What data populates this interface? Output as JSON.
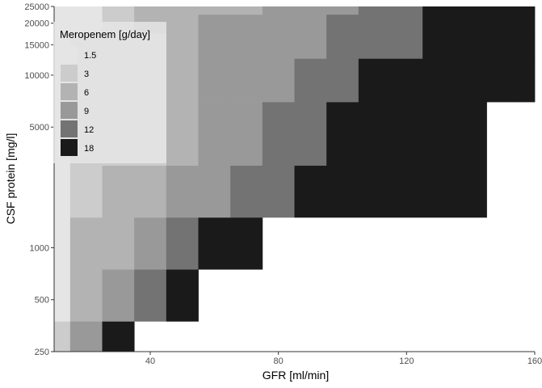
{
  "chart_data": {
    "type": "heatmap",
    "xlabel": "GFR [ml/min]",
    "ylabel": "CSF protein [mg/l]",
    "x_ticks": [
      40,
      80,
      120,
      160
    ],
    "y_ticks": [
      250,
      500,
      1000,
      5000,
      10000,
      15000,
      20000,
      25000
    ],
    "y_scale": "log",
    "xlim": [
      10,
      160
    ],
    "ylim": [
      250,
      25000
    ],
    "grid": false,
    "legend": {
      "title": "Meropenem [g/day]",
      "position": "top-left",
      "entries": [
        {
          "label": "1.5",
          "color": "#e5e5e5"
        },
        {
          "label": "3",
          "color": "#cccccc"
        },
        {
          "label": "6",
          "color": "#b3b3b3"
        },
        {
          "label": "9",
          "color": "#999999"
        },
        {
          "label": "12",
          "color": "#737373"
        },
        {
          "label": "18",
          "color": "#1a1a1a"
        }
      ]
    },
    "x_edges": [
      10,
      15,
      25,
      35,
      45,
      55,
      65,
      75,
      85,
      95,
      105,
      115,
      125,
      135,
      145,
      155,
      160
    ],
    "y_bands": [
      {
        "lo": 250,
        "hi": 375
      },
      {
        "lo": 375,
        "hi": 750
      },
      {
        "lo": 750,
        "hi": 1500
      },
      {
        "lo": 1500,
        "hi": 3000
      },
      {
        "lo": 3000,
        "hi": 7000
      },
      {
        "lo": 7000,
        "hi": 12500
      },
      {
        "lo": 12500,
        "hi": 17500
      },
      {
        "lo": 17500,
        "hi": 22500
      },
      {
        "lo": 22500,
        "hi": 25000
      }
    ],
    "dose_grid": [
      [
        3,
        9,
        18,
        null,
        null,
        null,
        null,
        null,
        null,
        null,
        null,
        null,
        null,
        null,
        null,
        null
      ],
      [
        1.5,
        6,
        9,
        12,
        18,
        null,
        null,
        null,
        null,
        null,
        null,
        null,
        null,
        null,
        null,
        null
      ],
      [
        1.5,
        6,
        6,
        9,
        12,
        18,
        18,
        null,
        null,
        null,
        null,
        null,
        null,
        null,
        null,
        null
      ],
      [
        1.5,
        3,
        6,
        6,
        9,
        9,
        12,
        12,
        18,
        18,
        18,
        18,
        18,
        18,
        null,
        null
      ],
      [
        1.5,
        3,
        3,
        3,
        6,
        9,
        9,
        12,
        12,
        18,
        18,
        18,
        18,
        18,
        null,
        null
      ],
      [
        1.5,
        3,
        3,
        3,
        6,
        9,
        9,
        9,
        12,
        12,
        18,
        18,
        18,
        18,
        18,
        18
      ],
      [
        1.5,
        3,
        3,
        3,
        6,
        9,
        9,
        9,
        9,
        12,
        12,
        12,
        18,
        18,
        18,
        18
      ],
      [
        1.5,
        1.5,
        3,
        6,
        6,
        9,
        9,
        9,
        9,
        12,
        12,
        12,
        18,
        18,
        18,
        18
      ],
      [
        1.5,
        1.5,
        3,
        6,
        6,
        6,
        6,
        9,
        9,
        9,
        12,
        12,
        18,
        18,
        18,
        18
      ]
    ]
  }
}
